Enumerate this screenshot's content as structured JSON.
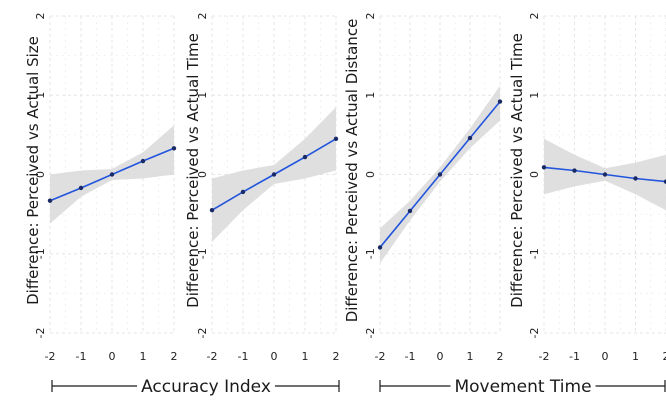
{
  "chart_data": [
    {
      "type": "line",
      "ylabel": "Difference: Perceived vs Actual Size",
      "xlabel": "",
      "x": [
        -2,
        -1,
        0,
        1,
        2
      ],
      "y": [
        -0.33,
        -0.17,
        0,
        0.17,
        0.33
      ],
      "ci_upper": [
        0.0,
        0.05,
        0.07,
        0.28,
        0.62
      ],
      "ci_lower": [
        -0.62,
        -0.28,
        -0.07,
        -0.05,
        0.0
      ],
      "xlim": [
        -2,
        2
      ],
      "ylim": [
        -2,
        2
      ],
      "xticks": [
        "-2",
        "-1",
        "0",
        "1",
        "2"
      ],
      "yticks": [
        "-2",
        "-1",
        "0",
        "1",
        "2"
      ],
      "grid": true,
      "group": "Accuracy Index"
    },
    {
      "type": "line",
      "ylabel": "Difference: Perceived vs Actual Time",
      "xlabel": "",
      "x": [
        -2,
        -1,
        0,
        1,
        2
      ],
      "y": [
        -0.45,
        -0.22,
        0,
        0.22,
        0.45
      ],
      "ci_upper": [
        -0.05,
        0.05,
        0.12,
        0.45,
        0.85
      ],
      "ci_lower": [
        -0.85,
        -0.45,
        -0.12,
        -0.05,
        0.05
      ],
      "xlim": [
        -2,
        2
      ],
      "ylim": [
        -2,
        2
      ],
      "xticks": [
        "-2",
        "-1",
        "0",
        "1",
        "2"
      ],
      "yticks": [
        "-2",
        "-1",
        "0",
        "1",
        "2"
      ],
      "grid": true,
      "group": "Accuracy Index"
    },
    {
      "type": "line",
      "ylabel": "Difference: Perceived vs Actual Distance",
      "xlabel": "",
      "x": [
        -2,
        -1,
        0,
        1,
        2
      ],
      "y": [
        -0.92,
        -0.46,
        0,
        0.46,
        0.92
      ],
      "ci_upper": [
        -0.68,
        -0.33,
        0.09,
        0.58,
        1.12
      ],
      "ci_lower": [
        -1.12,
        -0.58,
        -0.09,
        0.33,
        0.68
      ],
      "xlim": [
        -2,
        2
      ],
      "ylim": [
        -2,
        2
      ],
      "xticks": [
        "-2",
        "-1",
        "0",
        "1",
        "2"
      ],
      "yticks": [
        "-2",
        "-1",
        "0",
        "1",
        "2"
      ],
      "grid": true,
      "group": "Movement Time"
    },
    {
      "type": "line",
      "ylabel": "Difference: Perceived vs Actual Time",
      "xlabel": "",
      "x": [
        -2,
        -1,
        0,
        1,
        2
      ],
      "y": [
        0.09,
        0.05,
        0,
        -0.05,
        -0.09
      ],
      "ci_upper": [
        0.45,
        0.25,
        0.08,
        0.15,
        0.25
      ],
      "ci_lower": [
        -0.25,
        -0.15,
        -0.08,
        -0.25,
        -0.45
      ],
      "xlim": [
        -2,
        2
      ],
      "ylim": [
        -2,
        2
      ],
      "xticks": [
        "-2",
        "-1",
        "0",
        "1",
        "2"
      ],
      "yticks": [
        "-2",
        "-1",
        "0",
        "1",
        "2"
      ],
      "grid": true,
      "group": "Movement Time"
    }
  ],
  "groups": [
    {
      "label": "Accuracy Index"
    },
    {
      "label": "Movement Time"
    }
  ],
  "colors": {
    "line": "#2255dd",
    "band": "#d9d9d9",
    "grid": "#e6e6e6",
    "point": "#1a2a66"
  }
}
